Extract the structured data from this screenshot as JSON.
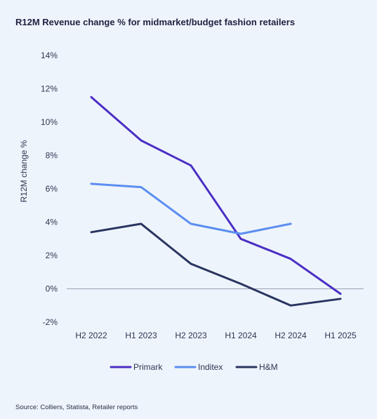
{
  "title": "R12M Revenue change % for midmarket/budget fashion retailers",
  "source": "Source: Colliers, Statista, Retailer reports",
  "chart_data": {
    "type": "line",
    "title": "R12M Revenue change % for midmarket/budget fashion retailers",
    "xlabel": "",
    "ylabel": "R12M change %",
    "categories": [
      "H2 2022",
      "H1 2023",
      "H2 2023",
      "H1 2024",
      "H2 2024",
      "H1 2025"
    ],
    "ylim": [
      -2,
      14
    ],
    "yticks": [
      -2,
      0,
      2,
      4,
      6,
      8,
      10,
      12,
      14
    ],
    "ytick_labels": [
      "-2%",
      "0%",
      "2%",
      "4%",
      "6%",
      "8%",
      "10%",
      "12%",
      "14%"
    ],
    "grid": false,
    "zero_line": true,
    "legend_position": "bottom",
    "series": [
      {
        "name": "Primark",
        "color": "#4a2fc4",
        "values": [
          11.5,
          8.9,
          7.4,
          3.0,
          1.8,
          -0.3
        ]
      },
      {
        "name": "Inditex",
        "color": "#5b8ef0",
        "values": [
          6.3,
          6.1,
          3.9,
          3.3,
          3.9,
          null
        ]
      },
      {
        "name": "H&M",
        "color": "#2a3560",
        "values": [
          3.4,
          3.9,
          1.5,
          0.3,
          -1.0,
          -0.6
        ]
      }
    ]
  }
}
